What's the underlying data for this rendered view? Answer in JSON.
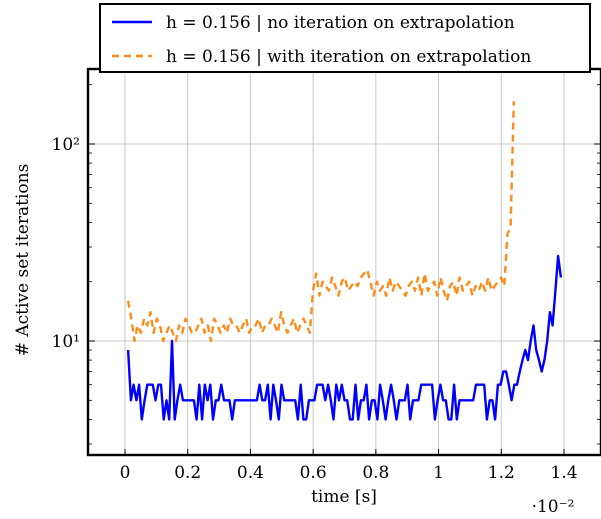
{
  "chart_data": {
    "type": "line",
    "xlabel": "time [s]",
    "ylabel": "# Active set iterations",
    "x_scale_note": "·10⁻²",
    "xlim": [
      -0.1,
      1.5
    ],
    "ylim_log": [
      3,
      200
    ],
    "y_scale": "log",
    "x_ticks": [
      0,
      0.2,
      0.4,
      0.6,
      0.8,
      1,
      1.2,
      1.4
    ],
    "x_tick_labels": [
      "0",
      "0.2",
      "0.4",
      "0.6",
      "0.8",
      "1",
      "1.2",
      "1.4"
    ],
    "y_major_ticks": [
      10,
      100
    ],
    "y_tick_labels": [
      "10¹",
      "10²"
    ],
    "grid": true,
    "legend_position": "top",
    "colors": {
      "series_solid": "#0000ff",
      "series_dashed": "#ff8c1a",
      "grid": "#c8c8c8"
    },
    "series": [
      {
        "name": "h = 0.156 | no iteration on extrapolation",
        "style": "solid",
        "values": [
          9,
          5,
          6,
          5,
          6,
          4,
          5,
          6,
          6,
          6,
          5,
          6,
          6,
          4,
          5,
          4,
          10,
          4,
          5,
          6,
          5,
          5,
          5,
          5,
          5,
          4,
          6,
          4,
          6,
          5,
          6,
          4,
          5,
          5,
          6,
          5,
          5,
          5,
          4,
          5,
          5,
          5,
          5,
          5,
          5,
          5,
          5,
          5,
          6,
          5,
          5,
          6,
          4,
          6,
          5,
          4,
          6,
          5,
          5,
          5,
          5,
          5,
          4,
          6,
          4,
          4,
          5,
          5,
          5,
          6,
          6,
          6,
          5,
          6,
          5,
          4,
          6,
          5,
          6,
          5,
          5,
          4,
          4,
          6,
          4,
          5,
          5,
          6,
          4,
          5,
          5,
          4,
          6,
          5,
          4,
          5,
          6,
          5,
          4,
          5,
          5,
          5,
          6,
          4,
          5,
          5,
          5,
          6,
          6,
          6,
          6,
          6,
          4,
          5,
          6,
          5,
          5,
          4,
          4,
          6,
          4,
          5,
          5,
          5,
          5,
          5,
          5,
          6,
          6,
          6,
          6,
          4,
          5,
          5,
          4,
          6,
          6,
          7,
          7,
          6,
          5,
          6,
          6,
          7,
          8,
          9,
          8,
          10,
          12,
          9,
          8,
          7,
          8,
          10,
          14,
          12,
          18,
          27,
          21
        ]
      },
      {
        "name": "h = 0.156 | with iteration on extrapolation",
        "style": "dashed",
        "values": [
          16,
          13,
          10,
          12,
          11,
          13,
          12,
          14,
          11,
          13,
          12,
          10,
          11,
          12,
          11,
          10,
          12,
          11,
          13,
          12,
          11,
          11,
          12,
          13,
          11,
          12,
          10,
          13,
          12,
          11,
          12,
          11,
          13,
          12,
          12,
          11,
          12,
          13,
          11,
          12,
          12,
          13,
          11,
          12,
          12,
          13,
          12,
          11,
          14,
          12,
          11,
          12,
          13,
          11,
          12,
          13,
          12,
          11,
          18,
          22,
          17,
          20,
          19,
          18,
          21,
          19,
          17,
          20,
          21,
          18,
          19,
          20,
          19,
          21,
          22,
          23,
          20,
          17,
          20,
          18,
          19,
          17,
          21,
          18,
          20,
          19,
          18,
          17,
          19,
          20,
          18,
          21,
          17,
          22,
          18,
          19,
          20,
          17,
          21,
          18,
          16,
          19,
          20,
          17,
          21,
          18,
          19,
          20,
          17,
          19,
          18,
          20,
          18,
          21,
          18,
          19,
          20,
          21,
          19,
          35,
          38,
          165
        ]
      }
    ]
  }
}
